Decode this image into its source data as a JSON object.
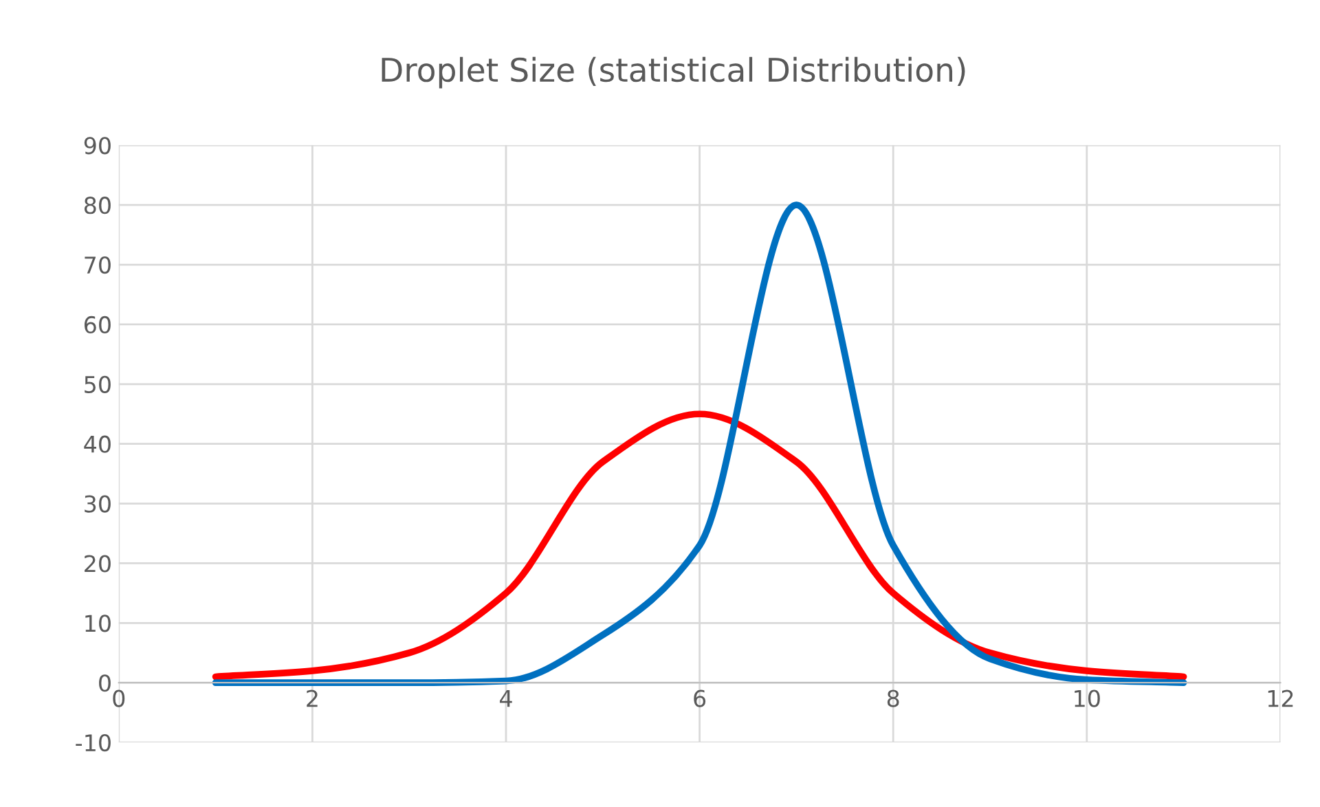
{
  "chart_data": {
    "type": "line",
    "title": "Droplet Size (statistical Distribution)",
    "x": [
      1,
      2,
      3,
      4,
      5,
      6,
      7,
      8,
      9,
      10,
      11
    ],
    "series": [
      {
        "color": "#ff0000",
        "values": [
          1,
          2,
          5,
          15,
          37,
          45,
          37,
          15,
          5,
          2,
          1
        ]
      },
      {
        "color": "#0070c0",
        "values": [
          0,
          0,
          0,
          0.3,
          8,
          23,
          80,
          23,
          4,
          0.5,
          0
        ]
      }
    ],
    "xlim": [
      0,
      12
    ],
    "xticks": [
      0,
      2,
      4,
      6,
      8,
      10,
      12
    ],
    "ylim": [
      -10,
      90
    ],
    "yticks": [
      -10,
      0,
      10,
      20,
      30,
      40,
      50,
      60,
      70,
      80,
      90
    ],
    "grid": true,
    "marker": "none",
    "line_style": "solid"
  }
}
